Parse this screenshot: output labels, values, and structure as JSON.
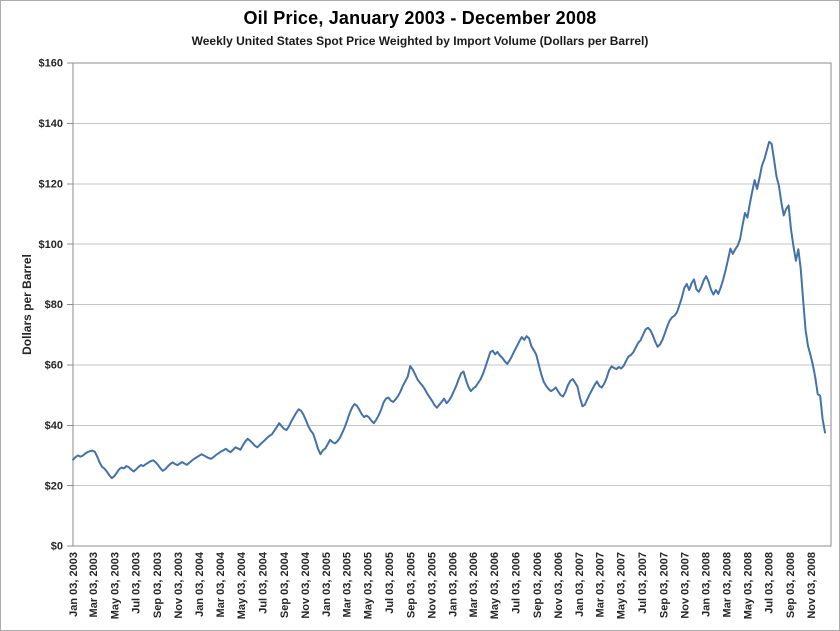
{
  "chart_data": {
    "type": "line",
    "title": "Oil Price, January 2003 - December 2008",
    "subtitle": "Weekly United States Spot Price Weighted by Import Volume (Dollars per Barrel)",
    "ylabel": "Dollars per Barrel",
    "xlabel": "",
    "ylim": [
      0,
      160
    ],
    "grid": "horizontal",
    "legend": "none",
    "y_tick_labels": [
      "$0",
      "$20",
      "$40",
      "$60",
      "$80",
      "$100",
      "$120",
      "$140",
      "$160"
    ],
    "x_tick_labels": [
      "Jan 03, 2003",
      "Mar 03, 2003",
      "May 03, 2003",
      "Jul 03, 2003",
      "Sep 03, 2003",
      "Nov 03, 2003",
      "Jan 03, 2004",
      "Mar 03, 2004",
      "May 03, 2004",
      "Jul 03, 2004",
      "Sep 03, 2004",
      "Nov 03, 2004",
      "Jan 03, 2005",
      "Mar 03, 2005",
      "May 03, 2005",
      "Jul 03, 2005",
      "Sep 03, 2005",
      "Nov 03, 2005",
      "Jan 03, 2006",
      "Mar 03, 2006",
      "May 03, 2006",
      "Jul 03, 2006",
      "Sep 03, 2006",
      "Nov 03, 2006",
      "Jan 03, 2007",
      "Mar 03, 2007",
      "May 03, 2007",
      "Jul 03, 2007",
      "Sep 03, 2007",
      "Nov 03, 2007",
      "Jan 03, 2008",
      "Mar 03, 2008",
      "May 03, 2008",
      "Jul 03, 2008",
      "Sep 03, 2008",
      "Nov 03, 2008"
    ],
    "series": [
      {
        "name": "Weekly U.S. spot price weighted by import volume",
        "unit": "dollars per barrel",
        "frequency": "weekly",
        "start_date": "2003-01-03",
        "end_date": "2008-12-12",
        "values": [
          28.6,
          29.4,
          30.0,
          29.6,
          29.9,
          30.6,
          31.1,
          31.4,
          31.6,
          31.2,
          29.6,
          27.6,
          26.2,
          25.6,
          24.6,
          23.4,
          22.5,
          23.1,
          24.2,
          25.4,
          26.0,
          25.7,
          26.5,
          26.1,
          25.3,
          24.7,
          25.4,
          26.2,
          26.8,
          26.5,
          27.1,
          27.6,
          28.1,
          28.4,
          27.8,
          26.9,
          25.8,
          24.9,
          25.4,
          26.3,
          27.1,
          27.7,
          27.2,
          26.8,
          27.3,
          27.8,
          27.3,
          26.9,
          27.6,
          28.3,
          28.9,
          29.4,
          29.9,
          30.4,
          30.0,
          29.5,
          29.1,
          28.9,
          29.5,
          30.2,
          30.7,
          31.3,
          31.7,
          32.2,
          31.5,
          31.1,
          31.9,
          32.7,
          32.3,
          31.9,
          33.3,
          34.6,
          35.5,
          34.9,
          34.1,
          33.2,
          32.7,
          33.5,
          34.3,
          35.0,
          35.8,
          36.5,
          37.0,
          38.2,
          39.4,
          40.7,
          39.7,
          38.8,
          38.4,
          39.6,
          41.3,
          42.7,
          44.1,
          45.3,
          44.8,
          43.5,
          41.7,
          39.7,
          38.2,
          37.2,
          34.8,
          32.2,
          30.4,
          31.7,
          32.3,
          33.7,
          35.2,
          34.4,
          34.0,
          34.7,
          35.8,
          37.5,
          39.3,
          41.5,
          43.9,
          45.8,
          47.0,
          46.5,
          45.2,
          43.7,
          42.7,
          43.2,
          42.6,
          41.5,
          40.7,
          41.8,
          43.3,
          45.1,
          47.5,
          48.8,
          49.2,
          48.2,
          47.7,
          48.6,
          49.7,
          51.2,
          53.1,
          54.6,
          56.1,
          59.6,
          58.5,
          56.9,
          55.2,
          54.1,
          53.2,
          52.0,
          50.5,
          49.3,
          48.1,
          46.7,
          45.8,
          46.8,
          47.8,
          48.8,
          47.3,
          48.2,
          49.5,
          51.3,
          53.1,
          55.3,
          57.2,
          57.8,
          55.0,
          52.7,
          51.3,
          52.2,
          52.8,
          54.0,
          55.2,
          57.0,
          59.3,
          61.7,
          64.2,
          64.7,
          63.5,
          64.3,
          63.1,
          62.3,
          61.2,
          60.3,
          61.5,
          63.0,
          64.7,
          66.2,
          67.8,
          69.2,
          68.3,
          69.5,
          68.8,
          66.1,
          64.8,
          63.3,
          60.1,
          57.0,
          54.5,
          53.1,
          52.0,
          51.3,
          51.8,
          52.5,
          51.2,
          50.0,
          49.5,
          51.0,
          53.2,
          54.7,
          55.3,
          54.1,
          52.7,
          49.1,
          46.3,
          46.8,
          48.6,
          50.3,
          51.8,
          53.3,
          54.5,
          53.0,
          52.5,
          53.8,
          55.7,
          58.2,
          59.5,
          59.0,
          58.6,
          59.3,
          58.8,
          59.7,
          61.3,
          62.8,
          63.3,
          64.2,
          65.8,
          67.3,
          68.2,
          70.0,
          71.7,
          72.3,
          71.5,
          69.8,
          67.7,
          66.0,
          66.8,
          68.3,
          70.5,
          72.8,
          74.7,
          75.8,
          76.3,
          77.5,
          79.8,
          82.3,
          85.5,
          86.8,
          84.8,
          87.0,
          88.3,
          85.0,
          84.2,
          85.8,
          88.0,
          89.4,
          87.6,
          84.9,
          83.3,
          84.8,
          83.5,
          85.6,
          88.2,
          91.3,
          94.8,
          98.5,
          96.8,
          98.3,
          99.5,
          101.7,
          106.2,
          110.3,
          108.8,
          113.3,
          117.4,
          121.2,
          118.3,
          121.9,
          126.0,
          128.1,
          131.0,
          133.9,
          133.2,
          128.0,
          122.4,
          119.3,
          113.8,
          109.5,
          111.7,
          112.8,
          104.8,
          99.3,
          94.5,
          98.3,
          91.8,
          81.3,
          71.5,
          66.2,
          63.3,
          60.0,
          55.8,
          50.3,
          49.8,
          42.1,
          37.6
        ]
      }
    ],
    "colors": {
      "line": "#4472A8",
      "gridline": "#C6C6C6",
      "plot_border": "#8C8C8C",
      "tick": "#8C8C8C",
      "text": "#262626",
      "background": "#FFFFFF",
      "frame_border": "#ABABAB"
    }
  }
}
